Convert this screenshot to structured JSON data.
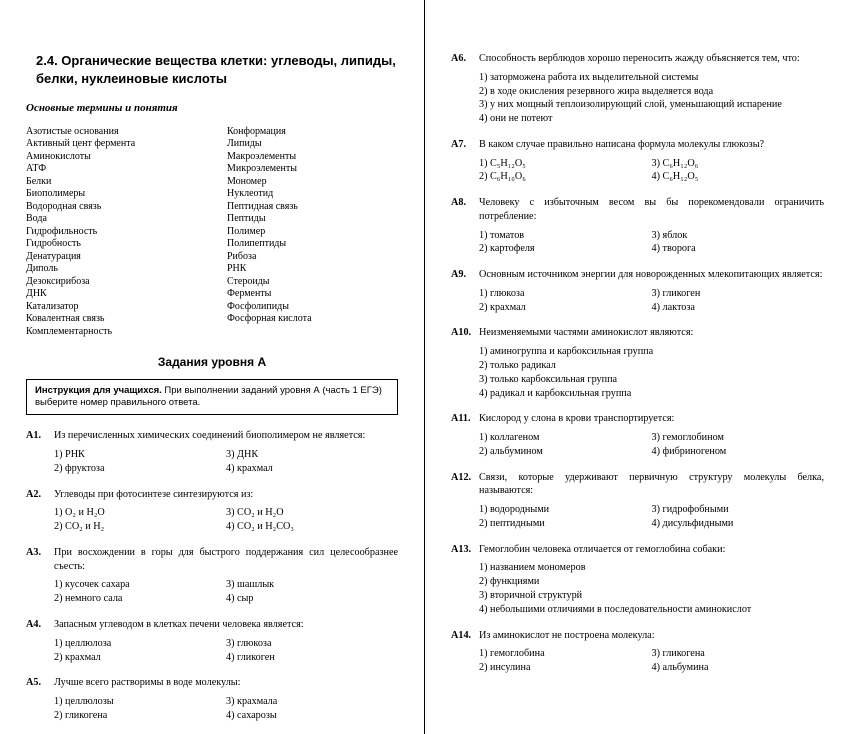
{
  "typography": {
    "body_font": "Times New Roman",
    "heading_font": "Arial",
    "body_size_pt": 10.2,
    "heading_size_pt": 13,
    "text_color": "#000000",
    "bg_color": "#ffffff",
    "divider_color": "#000000"
  },
  "left": {
    "section_title": "2.4. Органические вещества клетки: углеводы, липиды, белки, нуклеиновые кислоты",
    "sub_title": "Основные термины и понятия",
    "terms_col1": [
      "Азотистые основания",
      "Активный цент фермента",
      "Аминокислоты",
      "АТФ",
      "Белки",
      "Биополимеры",
      "Водородная связь",
      "Вода",
      "Гидрофильность",
      "Гидробность",
      "Денатурация",
      "Диполь",
      "Дезоксирибоза",
      "ДНК",
      "Катализатор",
      "Ковалентная связь",
      "Комплементарность"
    ],
    "terms_col2": [
      "Конформация",
      "Липиды",
      "Макроэлементы",
      "Микроэлементы",
      "Мономер",
      "Нуклеотид",
      "Пептидная связь",
      "Пептиды",
      "Полимер",
      "Полипептиды",
      "Рибоза",
      "РНК",
      "Стероиды",
      "Ферменты",
      "Фосфолипиды",
      "Фосфорная кислота"
    ],
    "level_title": "Задания уровня А",
    "instruction_bold": "Инструкция для учащихся.",
    "instruction_rest": " При выполнении заданий уровня А (часть 1 ЕГЭ) выберите номер правильного ответа.",
    "questions": [
      {
        "num": "А1.",
        "text": "Из перечисленных химических соединений биополимером не является:",
        "format": "two-col",
        "opts": [
          [
            "1) РНК",
            "2) фруктоза"
          ],
          [
            "3) ДНК",
            "4) крахмал"
          ]
        ]
      },
      {
        "num": "А2.",
        "text": "Углеводы при фотосинтезе синтезируются из:",
        "format": "two-col",
        "opts": [
          [
            "1) O₂ и H₂O",
            "2) CO₂ и H₂"
          ],
          [
            "3) CO₂ и H₂O",
            "4) CO₂ и H₂CO₃"
          ]
        ]
      },
      {
        "num": "А3.",
        "text": "При восхождении в горы для быстрого поддержания сил целесообразнее съесть:",
        "format": "two-col",
        "opts": [
          [
            "1) кусочек сахара",
            "2) немного сала"
          ],
          [
            "3) шашлык",
            "4) сыр"
          ]
        ]
      },
      {
        "num": "А4.",
        "text": "Запасным углеводом в клетках печени человека является:",
        "format": "two-col",
        "opts": [
          [
            "1) целлюлоза",
            "2) крахмал"
          ],
          [
            "3) глюкоза",
            "4) гликоген"
          ]
        ]
      },
      {
        "num": "А5.",
        "text": "Лучше всего растворимы в воде молекулы:",
        "format": "two-col",
        "opts": [
          [
            "1) целлюлозы",
            "2) гликогена"
          ],
          [
            "3) крахмала",
            "4) сахарозы"
          ]
        ]
      }
    ]
  },
  "right": {
    "questions": [
      {
        "num": "А6.",
        "text": "Способность верблюдов хорошо переносить жажду объясняется тем, что:",
        "format": "list",
        "opts": [
          "1) заторможена работа их выделительной системы",
          "2) в ходе окисления резервного жира выделяется вода",
          "3) у них мощный теплоизолирующий слой, уменьшающий испарение",
          "4) они не потеют"
        ]
      },
      {
        "num": "А7.",
        "text": "В каком случае правильно написана формула молекулы глюкозы?",
        "format": "two-col",
        "opts": [
          [
            "1) C₅H₁₂O₅",
            "2) C₆H₁₀O₆"
          ],
          [
            "3) C₆H₁₂O₆",
            "4) C₆H₁₂O₅"
          ]
        ]
      },
      {
        "num": "А8.",
        "text": "Человеку с избыточным весом вы бы порекомендовали ограничить потребление:",
        "format": "two-col",
        "opts": [
          [
            "1) томатов",
            "2) картофеля"
          ],
          [
            "3) яблок",
            "4) творога"
          ]
        ]
      },
      {
        "num": "А9.",
        "text": "Основным источником энергии для новорожденных млекопитающих является:",
        "format": "two-col",
        "opts": [
          [
            "1) глюкоза",
            "2) крахмал"
          ],
          [
            "3) гликоген",
            "4) лактоза"
          ]
        ]
      },
      {
        "num": "А10.",
        "text": "Неизменяемыми частями аминокислот являются:",
        "format": "list",
        "opts": [
          "1) аминогруппа и карбоксильная группа",
          "2) только радикал",
          "3) только карбоксильная группа",
          "4) радикал и карбоксильная группа"
        ]
      },
      {
        "num": "А11.",
        "text": "Кислород  у слона в крови транспортируется:",
        "format": "two-col",
        "opts": [
          [
            "1) коллагеном",
            "2) альбумином"
          ],
          [
            "3) гемоглобином",
            "4) фибриногеном"
          ]
        ]
      },
      {
        "num": "А12.",
        "text": "Связи, которые удерживают первичную структуру молекулы белка, называются:",
        "format": "two-col",
        "opts": [
          [
            "1) водородными",
            "2) пептидными"
          ],
          [
            "3) гидрофобными",
            "4) дисульфидными"
          ]
        ]
      },
      {
        "num": "А13.",
        "text": "Гемоглобин человека отличается от гемоглобина собаки:",
        "format": "list",
        "opts": [
          "1) названием мономеров",
          "2) функциями",
          "3) вторичной структурй",
          "4) небольшими отличиями в последовательности  аминокислот"
        ]
      },
      {
        "num": "А14.",
        "text": "Из аминокислот не построена молекула:",
        "format": "two-col",
        "opts": [
          [
            "1) гемоглобина",
            "2) инсулина"
          ],
          [
            "3) гликогена",
            "4) альбумина"
          ]
        ]
      }
    ]
  }
}
